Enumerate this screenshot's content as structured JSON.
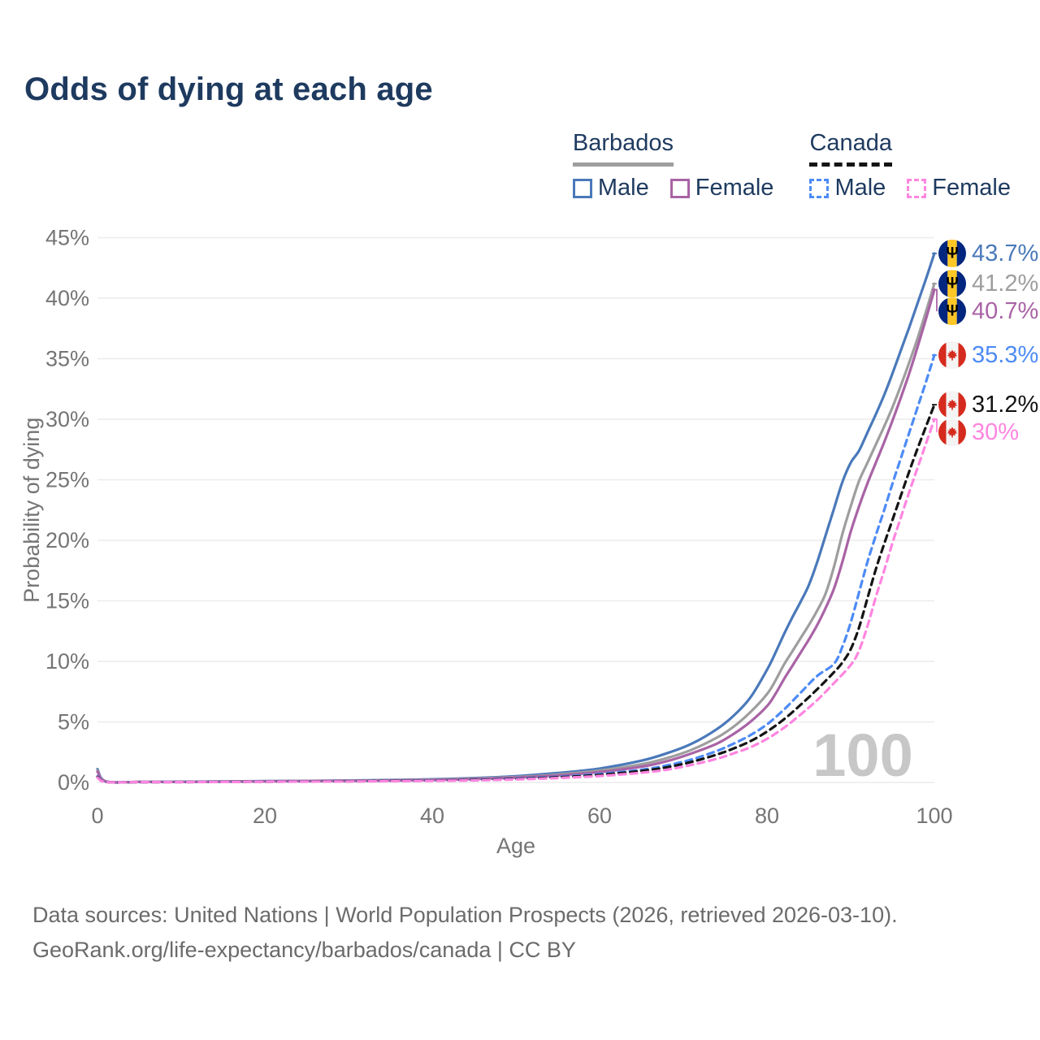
{
  "header": {
    "title": "Odds of dying at each age"
  },
  "legend": {
    "groups": [
      {
        "name": "Barbados",
        "line_style": "solid",
        "line_color": "#9e9e9e",
        "items": [
          {
            "label": "Male",
            "color": "#4a79ba",
            "dashed": false
          },
          {
            "label": "Female",
            "color": "#a963a5",
            "dashed": false
          }
        ]
      },
      {
        "name": "Canada",
        "line_style": "dashed",
        "line_color": "#141414",
        "items": [
          {
            "label": "Male",
            "color": "#4d8bf5",
            "dashed": true
          },
          {
            "label": "Female",
            "color": "#ff85e0",
            "dashed": true
          }
        ]
      }
    ]
  },
  "chart_data": {
    "type": "line",
    "title": "Odds of dying at each age",
    "xlabel": "Age",
    "ylabel": "Probability of dying",
    "xlim": [
      0,
      100
    ],
    "ylim": [
      0,
      45
    ],
    "x_ticks": [
      0,
      20,
      40,
      60,
      80,
      100
    ],
    "y_ticks": [
      0,
      5,
      10,
      15,
      20,
      25,
      30,
      35,
      40,
      45
    ],
    "y_tick_suffix": "%",
    "grid": true,
    "legend_position": "top-right",
    "watermark": "100",
    "colors": {
      "grid": "#ececec",
      "tick_text": "#757575",
      "watermark": "#c7c7c7"
    },
    "series": [
      {
        "name": "Barbados Male",
        "country": "Barbados",
        "sex": "Male",
        "flag": "barbados",
        "color": "#4a79ba",
        "dashed": false,
        "end_label": "43.7%",
        "points": [
          [
            0,
            1.1
          ],
          [
            1,
            0.09
          ],
          [
            5,
            0.05
          ],
          [
            10,
            0.06
          ],
          [
            15,
            0.08
          ],
          [
            20,
            0.11
          ],
          [
            25,
            0.13
          ],
          [
            30,
            0.16
          ],
          [
            35,
            0.2
          ],
          [
            40,
            0.26
          ],
          [
            45,
            0.36
          ],
          [
            50,
            0.52
          ],
          [
            55,
            0.78
          ],
          [
            60,
            1.15
          ],
          [
            65,
            1.8
          ],
          [
            68,
            2.4
          ],
          [
            71,
            3.2
          ],
          [
            74,
            4.4
          ],
          [
            76,
            5.5
          ],
          [
            78,
            7.0
          ],
          [
            80,
            9.3
          ],
          [
            81,
            10.7
          ],
          [
            82,
            12.2
          ],
          [
            83,
            13.6
          ],
          [
            84,
            14.9
          ],
          [
            85,
            16.3
          ],
          [
            86,
            18.2
          ],
          [
            87,
            20.4
          ],
          [
            88,
            22.6
          ],
          [
            89,
            24.8
          ],
          [
            90,
            26.4
          ],
          [
            91,
            27.4
          ],
          [
            92,
            28.9
          ],
          [
            93,
            30.4
          ],
          [
            94,
            32.0
          ],
          [
            95,
            33.8
          ],
          [
            96,
            35.7
          ],
          [
            97,
            37.6
          ],
          [
            98,
            39.6
          ],
          [
            99,
            41.6
          ],
          [
            100,
            43.7
          ]
        ]
      },
      {
        "name": "Barbados Both sexes",
        "country": "Barbados",
        "sex": "Both",
        "flag": "barbados",
        "color": "#9e9e9e",
        "dashed": false,
        "end_label": "41.2%",
        "points": [
          [
            0,
            1.0
          ],
          [
            1,
            0.08
          ],
          [
            5,
            0.045
          ],
          [
            10,
            0.05
          ],
          [
            15,
            0.07
          ],
          [
            20,
            0.1
          ],
          [
            25,
            0.12
          ],
          [
            30,
            0.14
          ],
          [
            35,
            0.18
          ],
          [
            40,
            0.23
          ],
          [
            45,
            0.32
          ],
          [
            50,
            0.45
          ],
          [
            55,
            0.66
          ],
          [
            60,
            0.98
          ],
          [
            65,
            1.5
          ],
          [
            68,
            2.0
          ],
          [
            71,
            2.7
          ],
          [
            74,
            3.7
          ],
          [
            76,
            4.6
          ],
          [
            78,
            5.8
          ],
          [
            80,
            7.3
          ],
          [
            81,
            8.4
          ],
          [
            82,
            9.7
          ],
          [
            83,
            10.8
          ],
          [
            84,
            11.9
          ],
          [
            85,
            13.0
          ],
          [
            86,
            14.2
          ],
          [
            87,
            15.6
          ],
          [
            88,
            17.8
          ],
          [
            89,
            20.5
          ],
          [
            90,
            22.8
          ],
          [
            91,
            24.9
          ],
          [
            92,
            26.4
          ],
          [
            93,
            27.9
          ],
          [
            94,
            29.4
          ],
          [
            95,
            31.0
          ],
          [
            96,
            32.8
          ],
          [
            97,
            34.7
          ],
          [
            98,
            36.7
          ],
          [
            99,
            38.9
          ],
          [
            100,
            41.2
          ]
        ]
      },
      {
        "name": "Barbados Female",
        "country": "Barbados",
        "sex": "Female",
        "flag": "barbados",
        "color": "#a963a5",
        "dashed": false,
        "end_label": "40.7%",
        "points": [
          [
            0,
            0.9
          ],
          [
            1,
            0.075
          ],
          [
            5,
            0.04
          ],
          [
            10,
            0.045
          ],
          [
            15,
            0.065
          ],
          [
            20,
            0.09
          ],
          [
            25,
            0.11
          ],
          [
            30,
            0.13
          ],
          [
            35,
            0.16
          ],
          [
            40,
            0.2
          ],
          [
            45,
            0.28
          ],
          [
            50,
            0.4
          ],
          [
            55,
            0.58
          ],
          [
            60,
            0.86
          ],
          [
            65,
            1.3
          ],
          [
            68,
            1.75
          ],
          [
            71,
            2.4
          ],
          [
            74,
            3.2
          ],
          [
            76,
            4.0
          ],
          [
            78,
            5.0
          ],
          [
            80,
            6.3
          ],
          [
            81,
            7.3
          ],
          [
            82,
            8.5
          ],
          [
            83,
            9.6
          ],
          [
            84,
            10.7
          ],
          [
            85,
            11.8
          ],
          [
            86,
            13.0
          ],
          [
            87,
            14.4
          ],
          [
            88,
            16.0
          ],
          [
            89,
            18.2
          ],
          [
            90,
            20.7
          ],
          [
            91,
            22.8
          ],
          [
            92,
            24.7
          ],
          [
            93,
            26.4
          ],
          [
            94,
            28.1
          ],
          [
            95,
            29.9
          ],
          [
            96,
            31.8
          ],
          [
            97,
            33.8
          ],
          [
            98,
            36.0
          ],
          [
            99,
            38.3
          ],
          [
            100,
            40.7
          ]
        ]
      },
      {
        "name": "Canada Male",
        "country": "Canada",
        "sex": "Male",
        "flag": "canada",
        "color": "#4d8bf5",
        "dashed": true,
        "end_label": "35.3%",
        "points": [
          [
            0,
            0.5
          ],
          [
            1,
            0.045
          ],
          [
            5,
            0.03
          ],
          [
            10,
            0.035
          ],
          [
            15,
            0.05
          ],
          [
            20,
            0.07
          ],
          [
            25,
            0.085
          ],
          [
            30,
            0.1
          ],
          [
            35,
            0.125
          ],
          [
            40,
            0.16
          ],
          [
            45,
            0.22
          ],
          [
            50,
            0.32
          ],
          [
            55,
            0.47
          ],
          [
            60,
            0.7
          ],
          [
            65,
            1.05
          ],
          [
            68,
            1.4
          ],
          [
            71,
            1.9
          ],
          [
            74,
            2.6
          ],
          [
            76,
            3.2
          ],
          [
            78,
            3.9
          ],
          [
            80,
            4.8
          ],
          [
            82,
            6.0
          ],
          [
            84,
            7.4
          ],
          [
            86,
            8.8
          ],
          [
            88,
            9.8
          ],
          [
            89,
            11.2
          ],
          [
            90,
            13.2
          ],
          [
            91,
            15.7
          ],
          [
            92,
            18.2
          ],
          [
            93,
            20.4
          ],
          [
            94,
            22.5
          ],
          [
            95,
            24.7
          ],
          [
            96,
            26.8
          ],
          [
            97,
            28.9
          ],
          [
            98,
            31.0
          ],
          [
            99,
            33.1
          ],
          [
            100,
            35.3
          ]
        ]
      },
      {
        "name": "Canada Both sexes",
        "country": "Canada",
        "sex": "Both",
        "flag": "canada",
        "color": "#141414",
        "dashed": true,
        "end_label": "31.2%",
        "points": [
          [
            0,
            0.45
          ],
          [
            1,
            0.04
          ],
          [
            5,
            0.028
          ],
          [
            10,
            0.032
          ],
          [
            15,
            0.045
          ],
          [
            20,
            0.062
          ],
          [
            25,
            0.078
          ],
          [
            30,
            0.092
          ],
          [
            35,
            0.115
          ],
          [
            40,
            0.15
          ],
          [
            45,
            0.2
          ],
          [
            50,
            0.29
          ],
          [
            55,
            0.42
          ],
          [
            60,
            0.62
          ],
          [
            65,
            0.95
          ],
          [
            68,
            1.25
          ],
          [
            71,
            1.7
          ],
          [
            74,
            2.3
          ],
          [
            76,
            2.8
          ],
          [
            78,
            3.4
          ],
          [
            80,
            4.2
          ],
          [
            82,
            5.2
          ],
          [
            84,
            6.4
          ],
          [
            86,
            7.7
          ],
          [
            88,
            9.1
          ],
          [
            89,
            9.9
          ],
          [
            90,
            11.0
          ],
          [
            91,
            12.8
          ],
          [
            92,
            15.2
          ],
          [
            93,
            17.6
          ],
          [
            94,
            19.7
          ],
          [
            95,
            21.7
          ],
          [
            96,
            23.7
          ],
          [
            97,
            25.7
          ],
          [
            98,
            27.6
          ],
          [
            99,
            29.4
          ],
          [
            100,
            31.2
          ]
        ]
      },
      {
        "name": "Canada Female",
        "country": "Canada",
        "sex": "Female",
        "flag": "canada",
        "color": "#ff85e0",
        "dashed": true,
        "end_label": "30%",
        "points": [
          [
            0,
            0.4
          ],
          [
            1,
            0.035
          ],
          [
            5,
            0.025
          ],
          [
            10,
            0.03
          ],
          [
            15,
            0.04
          ],
          [
            20,
            0.055
          ],
          [
            25,
            0.068
          ],
          [
            30,
            0.08
          ],
          [
            35,
            0.1
          ],
          [
            40,
            0.13
          ],
          [
            45,
            0.17
          ],
          [
            50,
            0.25
          ],
          [
            55,
            0.36
          ],
          [
            60,
            0.53
          ],
          [
            65,
            0.8
          ],
          [
            68,
            1.05
          ],
          [
            71,
            1.45
          ],
          [
            74,
            1.95
          ],
          [
            76,
            2.4
          ],
          [
            78,
            2.9
          ],
          [
            80,
            3.6
          ],
          [
            82,
            4.5
          ],
          [
            84,
            5.6
          ],
          [
            86,
            6.8
          ],
          [
            88,
            8.2
          ],
          [
            90,
            9.7
          ],
          [
            91,
            10.9
          ],
          [
            92,
            12.9
          ],
          [
            93,
            15.3
          ],
          [
            94,
            17.5
          ],
          [
            95,
            19.8
          ],
          [
            96,
            21.9
          ],
          [
            97,
            24.0
          ],
          [
            98,
            26.0
          ],
          [
            99,
            28.0
          ],
          [
            100,
            30.0
          ]
        ]
      }
    ]
  },
  "footer": {
    "line1": "Data sources: United Nations | World Population Prospects (2026, retrieved 2026-03-10).",
    "line2": "GeoRank.org/life-expectancy/barbados/canada | CC BY"
  }
}
